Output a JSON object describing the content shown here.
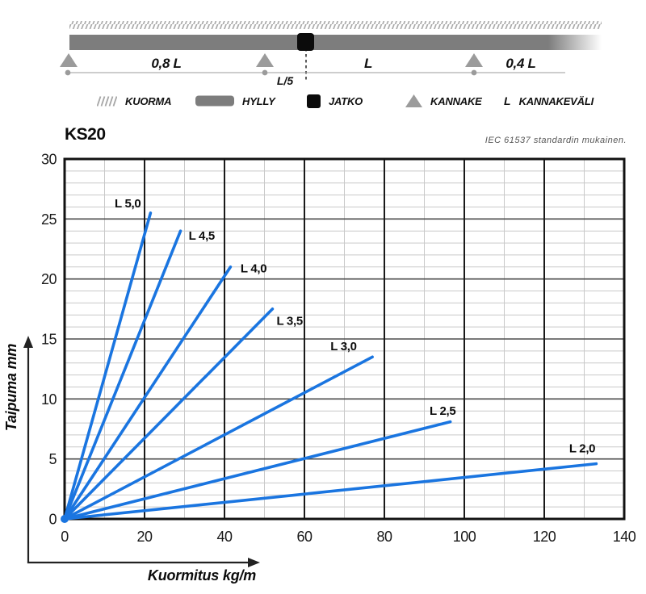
{
  "page": {
    "title": "KS20",
    "note": "IEC 61537 standardin mukainen."
  },
  "beam": {
    "span_left": "0,8 L",
    "joint_offset": "L/5",
    "span_mid": "L",
    "span_right": "0,4 L"
  },
  "legend": [
    {
      "icon": "load-hatch",
      "label": "KUORMA"
    },
    {
      "icon": "shelf-bar",
      "label": "HYLLY"
    },
    {
      "icon": "joint-square",
      "label": "JATKO"
    },
    {
      "icon": "support-triangle",
      "label": "KANNAKE"
    },
    {
      "icon": "letter",
      "symbol": "L",
      "label": "KANNAKEVÄLI"
    }
  ],
  "colors": {
    "line_blue": "#1a75e0",
    "bar_gray": "#7d7d7d",
    "support_gray": "#9b9b9b",
    "hatch_gray": "#a6a6a6",
    "grid_minor": "#c9c9c9",
    "grid_major_h": "#4d4d4d",
    "grid_major_v": "#1a1a1a",
    "frame": "#121212"
  },
  "chart_data": {
    "type": "line",
    "title": "KS20",
    "note": "IEC 61537 standardin mukainen.",
    "xlabel": "Kuormitus kg/m",
    "ylabel": "Taipuma mm",
    "xlim": [
      0,
      140
    ],
    "ylim": [
      0,
      30
    ],
    "xticks": [
      0,
      20,
      40,
      60,
      80,
      100,
      120,
      140
    ],
    "yticks": [
      0,
      5,
      10,
      15,
      20,
      25,
      30
    ],
    "x_minor_step": 10,
    "y_minor_step": 1,
    "grid": true,
    "legend_position": "inline-labels",
    "line_color": "#1a75e0",
    "series": [
      {
        "name": "L 5,0",
        "x": [
          0,
          21.5
        ],
        "y": [
          0,
          25.5
        ],
        "label_x": 15.8,
        "label_y": 26.3
      },
      {
        "name": "L 4,5",
        "x": [
          0,
          29
        ],
        "y": [
          0,
          24
        ],
        "label_x": 34.3,
        "label_y": 23.6
      },
      {
        "name": "L 4,0",
        "x": [
          0,
          41.5
        ],
        "y": [
          0,
          21
        ],
        "label_x": 47.3,
        "label_y": 20.9
      },
      {
        "name": "L 3,5",
        "x": [
          0,
          52
        ],
        "y": [
          0,
          17.5
        ],
        "label_x": 56.3,
        "label_y": 16.5
      },
      {
        "name": "L 3,0",
        "x": [
          0,
          77
        ],
        "y": [
          0,
          13.5
        ],
        "label_x": 69.8,
        "label_y": 14.4
      },
      {
        "name": "L 2,5",
        "x": [
          0,
          96.5
        ],
        "y": [
          0,
          8.1
        ],
        "label_x": 94.6,
        "label_y": 9.0
      },
      {
        "name": "L 2,0",
        "x": [
          0,
          133
        ],
        "y": [
          0,
          4.6
        ],
        "label_x": 129.5,
        "label_y": 5.9
      }
    ]
  }
}
